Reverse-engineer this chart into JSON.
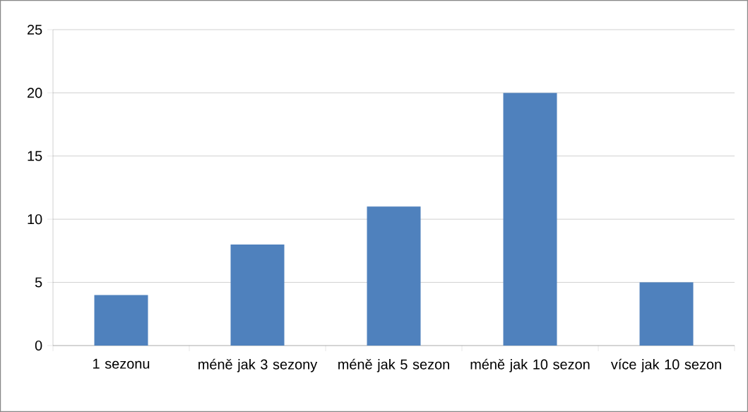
{
  "chart_data": {
    "type": "bar",
    "categories": [
      "1 sezonu",
      "méně jak 3 sezony",
      "méně jak 5 sezon",
      "méně jak 10 sezon",
      "více jak 10 sezon"
    ],
    "values": [
      4,
      8,
      11,
      20,
      5
    ],
    "color": "#4f81bd",
    "ylim": [
      0,
      25
    ],
    "yticks": [
      0,
      5,
      10,
      15,
      20,
      25
    ],
    "grid": "y"
  }
}
